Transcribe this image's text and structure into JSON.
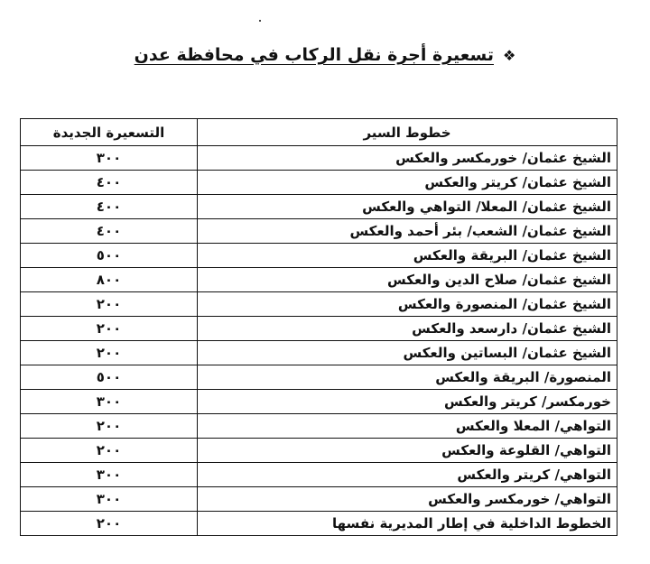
{
  "title": {
    "bullet": "❖",
    "text": "تسعيرة أجرة نقل الركاب في محافظة عدن"
  },
  "table": {
    "headers": {
      "route": "خطوط السير",
      "fare": "التسعيرة الجديدة"
    },
    "rows": [
      {
        "route": "الشيخ عثمان/ خورمكسر والعكس",
        "fare": "٣٠٠"
      },
      {
        "route": "الشيخ عثمان/ كريتر والعكس",
        "fare": "٤٠٠"
      },
      {
        "route": "الشيخ عثمان/ المعلا/ التواهي والعكس",
        "fare": "٤٠٠"
      },
      {
        "route": "الشيخ عثمان/ الشعب/ بئر أحمد والعكس",
        "fare": "٤٠٠"
      },
      {
        "route": "الشيخ عثمان/ البريقة والعكس",
        "fare": "٥٠٠"
      },
      {
        "route": "الشيخ عثمان/ صلاح الدين والعكس",
        "fare": "٨٠٠"
      },
      {
        "route": "الشيخ عثمان/ المنصورة والعكس",
        "fare": "٢٠٠"
      },
      {
        "route": "الشيخ عثمان/ دارسعد والعكس",
        "fare": "٢٠٠"
      },
      {
        "route": "الشيخ عثمان/ البساتين والعكس",
        "fare": "٢٠٠"
      },
      {
        "route": "المنصورة/ البريقة والعكس",
        "fare": "٥٠٠"
      },
      {
        "route": "خورمكسر/ كريتر والعكس",
        "fare": "٣٠٠"
      },
      {
        "route": "التواهي/ المعلا والعكس",
        "fare": "٢٠٠"
      },
      {
        "route": "التواهي/ القلوعة والعكس",
        "fare": "٢٠٠"
      },
      {
        "route": "التواهي/ كريتر والعكس",
        "fare": "٣٠٠"
      },
      {
        "route": "التواهي/ خورمكسر والعكس",
        "fare": "٣٠٠"
      },
      {
        "route": "الخطوط الداخلية في إطار المديرية نفسها",
        "fare": "٢٠٠"
      }
    ]
  }
}
